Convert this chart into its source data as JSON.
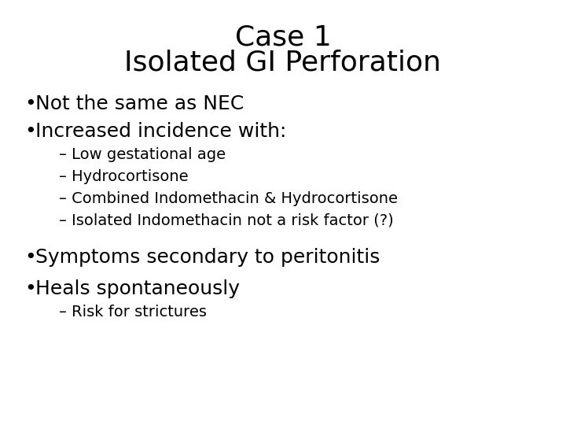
{
  "title_line1": "Case 1",
  "title_line2": "Isolated GI Perforation",
  "title_fontsize": 26,
  "title_fontweight": "normal",
  "background_color": "#ffffff",
  "text_color": "#000000",
  "bullet_fontsize": 18,
  "sub_fontsize": 14,
  "bullet_char": "•",
  "lines": [
    {
      "type": "title1",
      "text": "Case 1"
    },
    {
      "type": "title2",
      "text": "Isolated GI Perforation"
    },
    {
      "type": "bullet",
      "text": "Not the same as NEC"
    },
    {
      "type": "bullet",
      "text": "Increased incidence with:"
    },
    {
      "type": "sub",
      "text": "– Low gestational age"
    },
    {
      "type": "sub",
      "text": "– Hydrocortisone"
    },
    {
      "type": "sub",
      "text": "– Combined Indomethacin & Hydrocortisone"
    },
    {
      "type": "sub",
      "text": "– Isolated Indomethacin not a risk factor (?)"
    },
    {
      "type": "bullet",
      "text": "Symptoms secondary to peritonitis"
    },
    {
      "type": "bullet",
      "text": "Heals spontaneously"
    },
    {
      "type": "sub",
      "text": "– Risk for strictures"
    }
  ]
}
